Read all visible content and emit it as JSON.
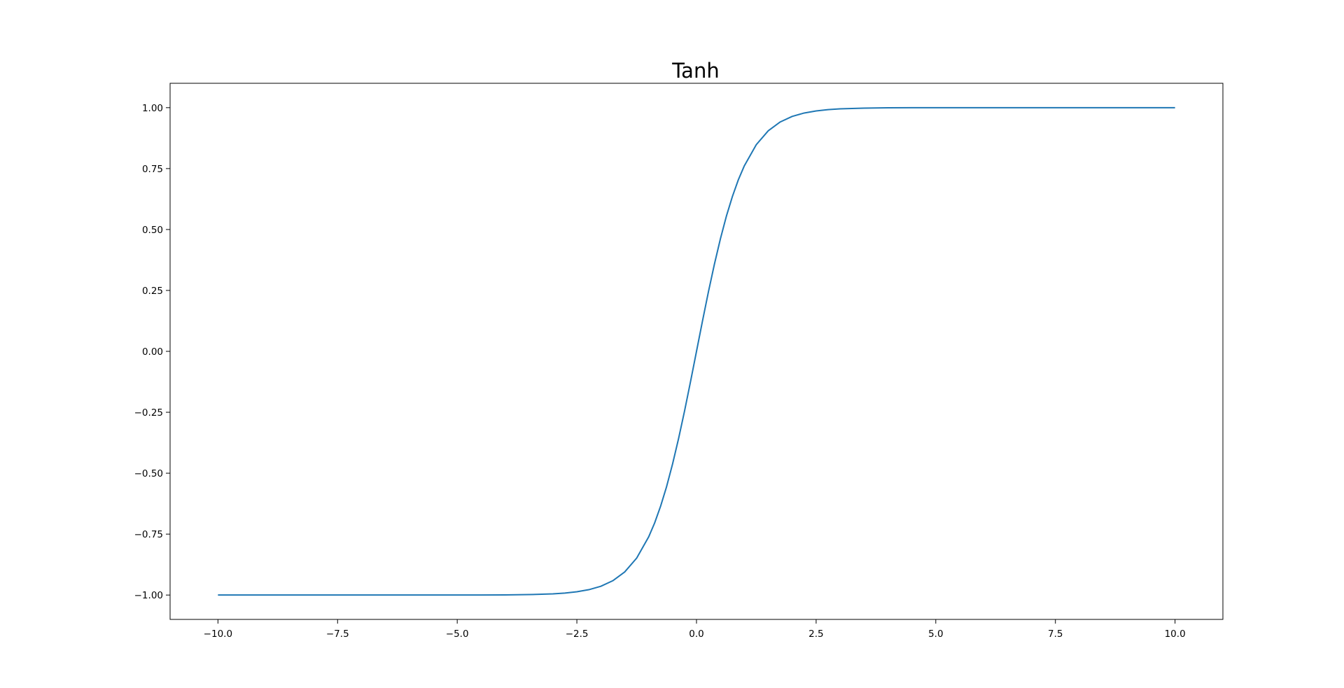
{
  "chart_data": {
    "type": "line",
    "title": "Tanh",
    "xlabel": "",
    "ylabel": "",
    "xlim": [
      -11.0,
      11.0
    ],
    "ylim": [
      -1.1,
      1.1
    ],
    "grid": false,
    "legend": "none",
    "x_ticks": [
      -10.0,
      -7.5,
      -5.0,
      -2.5,
      0.0,
      2.5,
      5.0,
      7.5,
      10.0
    ],
    "x_tick_labels": [
      "−10.0",
      "−7.5",
      "−5.0",
      "−2.5",
      "0.0",
      "2.5",
      "5.0",
      "7.5",
      "10.0"
    ],
    "y_ticks": [
      -1.0,
      -0.75,
      -0.5,
      -0.25,
      0.0,
      0.25,
      0.5,
      0.75,
      1.0
    ],
    "y_tick_labels": [
      "−1.00",
      "−0.75",
      "−0.50",
      "−0.25",
      "0.00",
      "0.25",
      "0.50",
      "0.75",
      "1.00"
    ],
    "series": [
      {
        "color": "#1f77b4",
        "x": [
          -10.0,
          -9.0,
          -8.0,
          -7.0,
          -6.0,
          -5.0,
          -4.5,
          -4.0,
          -3.5,
          -3.0,
          -2.75,
          -2.5,
          -2.25,
          -2.0,
          -1.75,
          -1.5,
          -1.25,
          -1.0,
          -0.875,
          -0.75,
          -0.625,
          -0.5,
          -0.375,
          -0.25,
          -0.125,
          0.0,
          0.125,
          0.25,
          0.375,
          0.5,
          0.625,
          0.75,
          0.875,
          1.0,
          1.25,
          1.5,
          1.75,
          2.0,
          2.25,
          2.5,
          2.75,
          3.0,
          3.5,
          4.0,
          4.5,
          5.0,
          6.0,
          7.0,
          8.0,
          9.0,
          10.0
        ],
        "y": [
          -1.0,
          -1.0,
          -1.0,
          -1.0,
          -0.99999,
          -0.99991,
          -0.99975,
          -0.99933,
          -0.99818,
          -0.99505,
          -0.99186,
          -0.98661,
          -0.97803,
          -0.96403,
          -0.94138,
          -0.90515,
          -0.84828,
          -0.76159,
          -0.70432,
          -0.63515,
          -0.55515,
          -0.46212,
          -0.35835,
          -0.24492,
          -0.12435,
          0.0,
          0.12435,
          0.24492,
          0.35835,
          0.46212,
          0.55515,
          0.63515,
          0.70432,
          0.76159,
          0.84828,
          0.90515,
          0.94138,
          0.96403,
          0.97803,
          0.98661,
          0.99186,
          0.99505,
          0.99818,
          0.99933,
          0.99975,
          0.99991,
          0.99999,
          1.0,
          1.0,
          1.0,
          1.0
        ]
      }
    ]
  }
}
